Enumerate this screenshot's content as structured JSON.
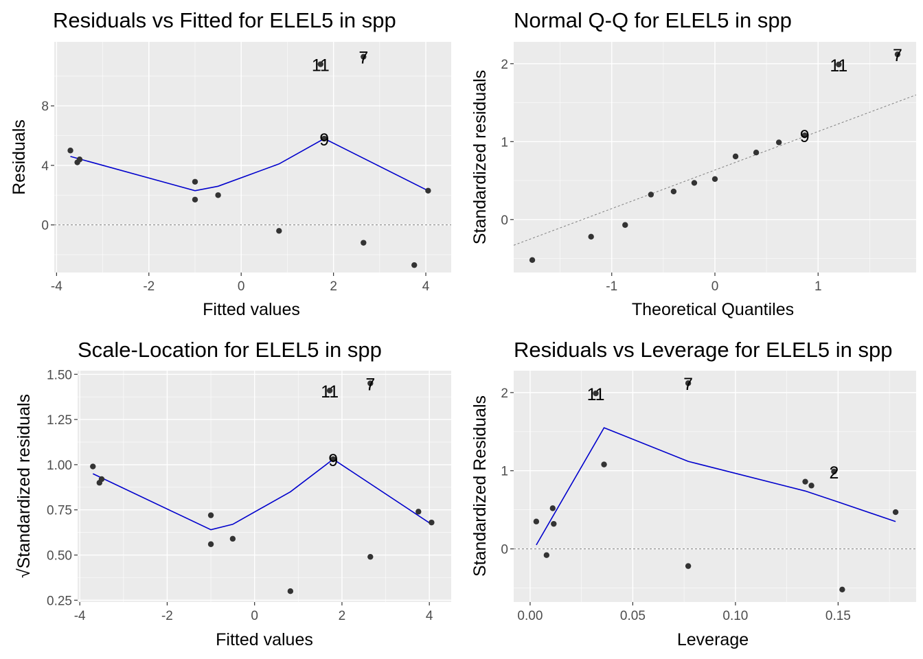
{
  "chart_data": [
    {
      "type": "scatter",
      "title": "Residuals vs Fitted for ELEL5 in spp",
      "xlabel": "Fitted values",
      "ylabel": "Residuals",
      "xlim": [
        -4.05,
        4.55
      ],
      "ylim": [
        -3.2,
        12.3
      ],
      "xticks": [
        -4,
        -2,
        0,
        2,
        4
      ],
      "xtick_labels": [
        "-4",
        "-2",
        "0",
        "2",
        "4"
      ],
      "yticks": [
        0,
        4,
        8
      ],
      "ytick_labels": [
        "0",
        "4",
        "8"
      ],
      "points": [
        {
          "x": -3.7,
          "y": 5.0
        },
        {
          "x": -3.55,
          "y": 4.2
        },
        {
          "x": -3.5,
          "y": 4.4
        },
        {
          "x": -1.0,
          "y": 2.9
        },
        {
          "x": -1.0,
          "y": 1.7
        },
        {
          "x": -0.5,
          "y": 2.0
        },
        {
          "x": 0.82,
          "y": -0.4
        },
        {
          "x": 1.72,
          "y": 10.8
        },
        {
          "x": 1.8,
          "y": 5.8
        },
        {
          "x": 2.65,
          "y": -1.2
        },
        {
          "x": 2.65,
          "y": 11.3
        },
        {
          "x": 3.75,
          "y": -2.7
        },
        {
          "x": 4.05,
          "y": 2.3
        }
      ],
      "smooth": [
        {
          "x": -3.7,
          "y": 4.6
        },
        {
          "x": -1.0,
          "y": 2.3
        },
        {
          "x": -0.5,
          "y": 2.6
        },
        {
          "x": 0.82,
          "y": 4.1
        },
        {
          "x": 1.8,
          "y": 5.8
        },
        {
          "x": 4.05,
          "y": 2.3
        }
      ],
      "refline": {
        "type": "hline",
        "y": 0
      },
      "labels": [
        {
          "text": "11",
          "x": 1.72,
          "y": 10.8
        },
        {
          "text": "7",
          "x": 2.65,
          "y": 11.3
        },
        {
          "text": "9",
          "x": 1.8,
          "y": 5.8
        }
      ]
    },
    {
      "type": "scatter",
      "title": "Normal Q-Q for ELEL5 in spp",
      "xlabel": "Theoretical Quantiles",
      "ylabel": "Standardized residuals",
      "xlim": [
        -1.95,
        1.95
      ],
      "ylim": [
        -0.68,
        2.28
      ],
      "xticks": [
        -1,
        0,
        1
      ],
      "xtick_labels": [
        "-1",
        "0",
        "1"
      ],
      "yticks": [
        0,
        1,
        2
      ],
      "ytick_labels": [
        "0",
        "1",
        "2"
      ],
      "points": [
        {
          "x": -1.77,
          "y": -0.52
        },
        {
          "x": -1.2,
          "y": -0.22
        },
        {
          "x": -0.87,
          "y": -0.07
        },
        {
          "x": -0.62,
          "y": 0.32
        },
        {
          "x": -0.4,
          "y": 0.36
        },
        {
          "x": -0.2,
          "y": 0.47
        },
        {
          "x": 0.0,
          "y": 0.52
        },
        {
          "x": 0.2,
          "y": 0.81
        },
        {
          "x": 0.4,
          "y": 0.86
        },
        {
          "x": 0.62,
          "y": 0.99
        },
        {
          "x": 0.87,
          "y": 1.08
        },
        {
          "x": 1.2,
          "y": 1.99
        },
        {
          "x": 1.77,
          "y": 2.12
        }
      ],
      "refline": {
        "type": "qqline",
        "x1": -1.95,
        "y1": -0.33,
        "x2": 1.95,
        "y2": 1.6
      },
      "labels": [
        {
          "text": "11",
          "x": 1.2,
          "y": 1.99
        },
        {
          "text": "7",
          "x": 1.77,
          "y": 2.12
        },
        {
          "text": "9",
          "x": 0.87,
          "y": 1.08
        }
      ]
    },
    {
      "type": "scatter",
      "title": "Scale-Location for ELEL5 in spp",
      "xlabel": "Fitted values",
      "ylabel": "√Standardized residuals",
      "xlim": [
        -4.05,
        4.5
      ],
      "ylim": [
        0.24,
        1.52
      ],
      "xticks": [
        -4,
        -2,
        0,
        2,
        4
      ],
      "xtick_labels": [
        "-4",
        "-2",
        "0",
        "2",
        "4"
      ],
      "yticks": [
        0.25,
        0.5,
        0.75,
        1.0,
        1.25,
        1.5
      ],
      "ytick_labels": [
        "0.25",
        "0.50",
        "0.75",
        "1.00",
        "1.25",
        "1.50"
      ],
      "points": [
        {
          "x": -3.7,
          "y": 0.99
        },
        {
          "x": -3.55,
          "y": 0.9
        },
        {
          "x": -3.5,
          "y": 0.92
        },
        {
          "x": -1.0,
          "y": 0.72
        },
        {
          "x": -1.0,
          "y": 0.56
        },
        {
          "x": -0.5,
          "y": 0.59
        },
        {
          "x": 0.82,
          "y": 0.3
        },
        {
          "x": 1.72,
          "y": 1.41
        },
        {
          "x": 1.8,
          "y": 1.03
        },
        {
          "x": 2.65,
          "y": 0.49
        },
        {
          "x": 2.65,
          "y": 1.45
        },
        {
          "x": 3.75,
          "y": 0.74
        },
        {
          "x": 4.05,
          "y": 0.68
        }
      ],
      "smooth": [
        {
          "x": -3.7,
          "y": 0.95
        },
        {
          "x": -1.0,
          "y": 0.64
        },
        {
          "x": -0.5,
          "y": 0.67
        },
        {
          "x": 0.82,
          "y": 0.85
        },
        {
          "x": 1.8,
          "y": 1.03
        },
        {
          "x": 4.05,
          "y": 0.67
        }
      ],
      "labels": [
        {
          "text": "11",
          "x": 1.72,
          "y": 1.41
        },
        {
          "text": "7",
          "x": 2.65,
          "y": 1.45
        },
        {
          "text": "9",
          "x": 1.8,
          "y": 1.03
        }
      ]
    },
    {
      "type": "scatter",
      "title": "Residuals vs Leverage for ELEL5 in spp",
      "xlabel": "Leverage",
      "ylabel": "Standardized Residuals",
      "xlim": [
        -0.008,
        0.188
      ],
      "ylim": [
        -0.68,
        2.28
      ],
      "xticks": [
        0.0,
        0.05,
        0.1,
        0.15
      ],
      "xtick_labels": [
        "0.00",
        "0.05",
        "0.10",
        "0.15"
      ],
      "yticks": [
        0,
        1,
        2
      ],
      "ytick_labels": [
        "0",
        "1",
        "2"
      ],
      "points": [
        {
          "x": 0.003,
          "y": 0.35
        },
        {
          "x": 0.008,
          "y": -0.08
        },
        {
          "x": 0.011,
          "y": 0.52
        },
        {
          "x": 0.0115,
          "y": 0.32
        },
        {
          "x": 0.032,
          "y": 1.99
        },
        {
          "x": 0.036,
          "y": 1.08
        },
        {
          "x": 0.077,
          "y": 2.12
        },
        {
          "x": 0.077,
          "y": -0.22
        },
        {
          "x": 0.134,
          "y": 0.86
        },
        {
          "x": 0.137,
          "y": 0.81
        },
        {
          "x": 0.148,
          "y": 0.99
        },
        {
          "x": 0.152,
          "y": -0.52
        },
        {
          "x": 0.178,
          "y": 0.47
        }
      ],
      "smooth": [
        {
          "x": 0.003,
          "y": 0.05
        },
        {
          "x": 0.036,
          "y": 1.55
        },
        {
          "x": 0.077,
          "y": 1.12
        },
        {
          "x": 0.134,
          "y": 0.74
        },
        {
          "x": 0.15,
          "y": 0.6
        },
        {
          "x": 0.178,
          "y": 0.35
        }
      ],
      "refline": {
        "type": "hline",
        "y": 0
      },
      "labels": [
        {
          "text": "11",
          "x": 0.032,
          "y": 1.99
        },
        {
          "text": "7",
          "x": 0.077,
          "y": 2.12
        },
        {
          "text": "2",
          "x": 0.148,
          "y": 0.99
        }
      ]
    }
  ],
  "colors": {
    "panel_bg": "#ebebeb",
    "grid_major": "#ffffff",
    "point": "#333333",
    "smooth": "#0000cc",
    "refline": "#7f7f7f",
    "tick_text": "#4d4d4d"
  }
}
